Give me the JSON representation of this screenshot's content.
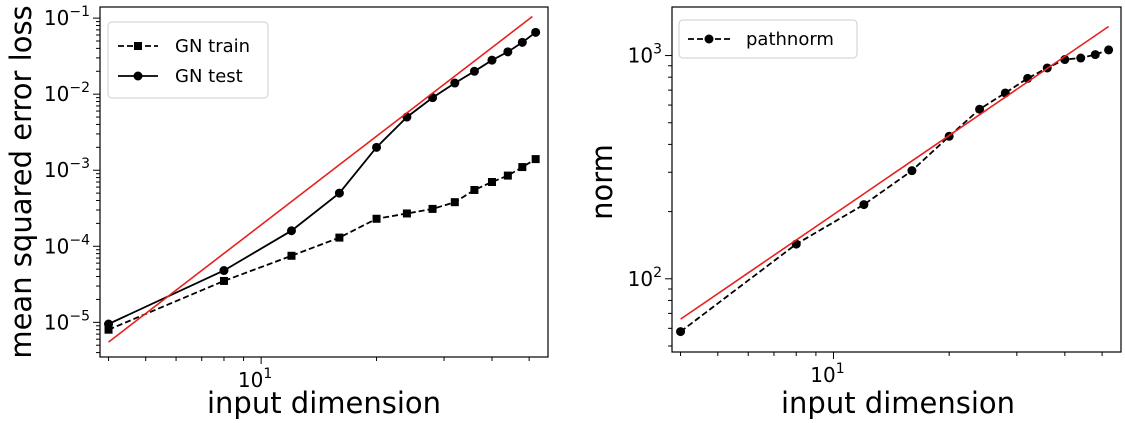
{
  "chart_data": [
    {
      "type": "line",
      "title": "",
      "xlabel": "input dimension",
      "ylabel": "mean squared error loss",
      "xscale": "log",
      "yscale": "log",
      "xlim": [
        3.8,
        56
      ],
      "ylim": [
        3.5e-06,
        0.14
      ],
      "grid": false,
      "legend_position": "top-left",
      "xticks": [
        {
          "value": 10,
          "base": "10",
          "exp": "1"
        }
      ],
      "yticks": [
        {
          "value": 1e-05,
          "base": "10",
          "exp": "−5"
        },
        {
          "value": 0.0001,
          "base": "10",
          "exp": "−4"
        },
        {
          "value": 0.001,
          "base": "10",
          "exp": "−3"
        },
        {
          "value": 0.01,
          "base": "10",
          "exp": "−2"
        },
        {
          "value": 0.1,
          "base": "10",
          "exp": "−1"
        }
      ],
      "series": [
        {
          "name": "GN train",
          "color": "#000000",
          "linestyle": "dashed",
          "marker": "square",
          "x": [
            4,
            8,
            12,
            16,
            20,
            24,
            28,
            32,
            36,
            40,
            44,
            48,
            52
          ],
          "y": [
            8e-06,
            3.5e-05,
            7.5e-05,
            0.00013,
            0.00023,
            0.00027,
            0.00031,
            0.00038,
            0.00055,
            0.0007,
            0.00085,
            0.0011,
            0.0014
          ],
          "draw_order": [
            0,
            1,
            2,
            3,
            4,
            5,
            6,
            7,
            8,
            9,
            10,
            11,
            12
          ]
        },
        {
          "name": "GN test",
          "color": "#000000",
          "linestyle": "solid",
          "marker": "circle",
          "x": [
            4,
            8,
            12,
            16,
            20,
            24,
            28,
            32,
            36,
            40,
            44,
            48,
            52
          ],
          "y": [
            9.5e-06,
            4.8e-05,
            0.00016,
            0.0005,
            0.002,
            0.005,
            0.009,
            0.014,
            0.02,
            0.028,
            0.036,
            0.048,
            0.065
          ],
          "draw_order": [
            0,
            1,
            2,
            3,
            4,
            5,
            6,
            7,
            8,
            9,
            10,
            11,
            12
          ]
        },
        {
          "name": "",
          "color": "#e8201e",
          "linestyle": "solid",
          "marker": "none",
          "x": [
            4,
            51
          ],
          "y": [
            5.5e-06,
            0.105
          ]
        }
      ]
    },
    {
      "type": "line",
      "title": "",
      "xlabel": "input dimension",
      "ylabel": "norm",
      "xscale": "log",
      "yscale": "log",
      "xlim": [
        3.8,
        56
      ],
      "ylim": [
        47,
        1650
      ],
      "grid": false,
      "legend_position": "top-left",
      "xticks": [
        {
          "value": 10,
          "base": "10",
          "exp": "1"
        }
      ],
      "yticks": [
        {
          "value": 100,
          "base": "10",
          "exp": "2"
        },
        {
          "value": 1000,
          "base": "10",
          "exp": "3"
        }
      ],
      "series": [
        {
          "name": "pathnorm",
          "color": "#000000",
          "linestyle": "dashed",
          "marker": "circle",
          "x": [
            4,
            8,
            12,
            16,
            20,
            24,
            28,
            32,
            36,
            40,
            44,
            48,
            52
          ],
          "y": [
            58,
            143,
            215,
            305,
            435,
            575,
            680,
            790,
            880,
            960,
            975,
            1010,
            1060
          ]
        },
        {
          "name": "",
          "color": "#e8201e",
          "linestyle": "solid",
          "marker": "none",
          "x": [
            4,
            52
          ],
          "y": [
            66,
            1350
          ]
        }
      ]
    }
  ]
}
